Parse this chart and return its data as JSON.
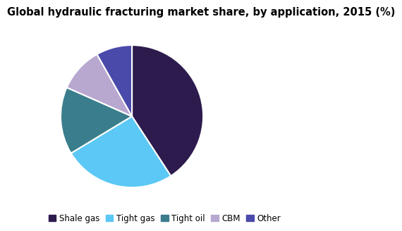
{
  "title": "Global hydraulic fracturing market share, by application, 2015 (%)",
  "labels": [
    "Shale gas",
    "Tight gas",
    "Tight oil",
    "CBM",
    "Other"
  ],
  "values": [
    40,
    25,
    15,
    10,
    8
  ],
  "colors": [
    "#2d1b4e",
    "#5bc8f5",
    "#3a7d8c",
    "#b8a8d0",
    "#4a4aaa"
  ],
  "legend_labels": [
    "Shale gas",
    "Tight gas",
    "Tight oil",
    "CBM",
    "Other"
  ],
  "startangle": 90,
  "title_fontsize": 10.5,
  "legend_fontsize": 8.5,
  "background_color": "#ffffff"
}
